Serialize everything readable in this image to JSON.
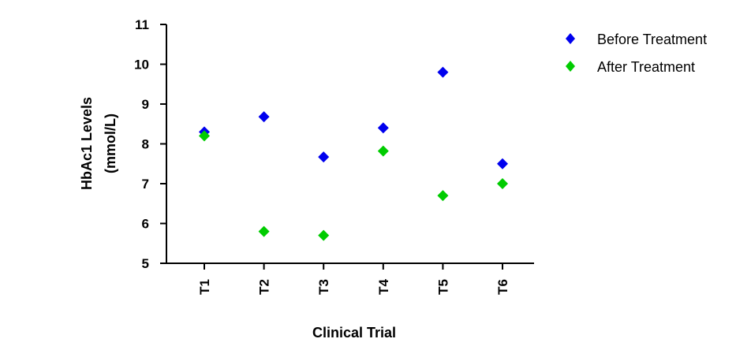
{
  "chart_data": {
    "type": "scatter",
    "categories": [
      "T1",
      "T2",
      "T3",
      "T4",
      "T5",
      "T6"
    ],
    "series": [
      {
        "name": "Before Treatment",
        "color": "#0000ee",
        "marker": "diamond",
        "values": [
          8.3,
          8.68,
          7.67,
          8.4,
          9.8,
          7.5
        ]
      },
      {
        "name": "After Treatment",
        "color": "#00cc00",
        "marker": "diamond",
        "values": [
          8.2,
          5.8,
          5.7,
          7.82,
          6.7,
          7.0
        ]
      }
    ],
    "xlabel": "Clinical Trial",
    "ylabel_line1": "HbAc1 Levels",
    "ylabel_line2": "(mmol/L)",
    "ylim": [
      5,
      11
    ],
    "yticks": [
      5,
      6,
      7,
      8,
      9,
      10,
      11
    ],
    "grid": false,
    "legend_position": "top-right"
  }
}
